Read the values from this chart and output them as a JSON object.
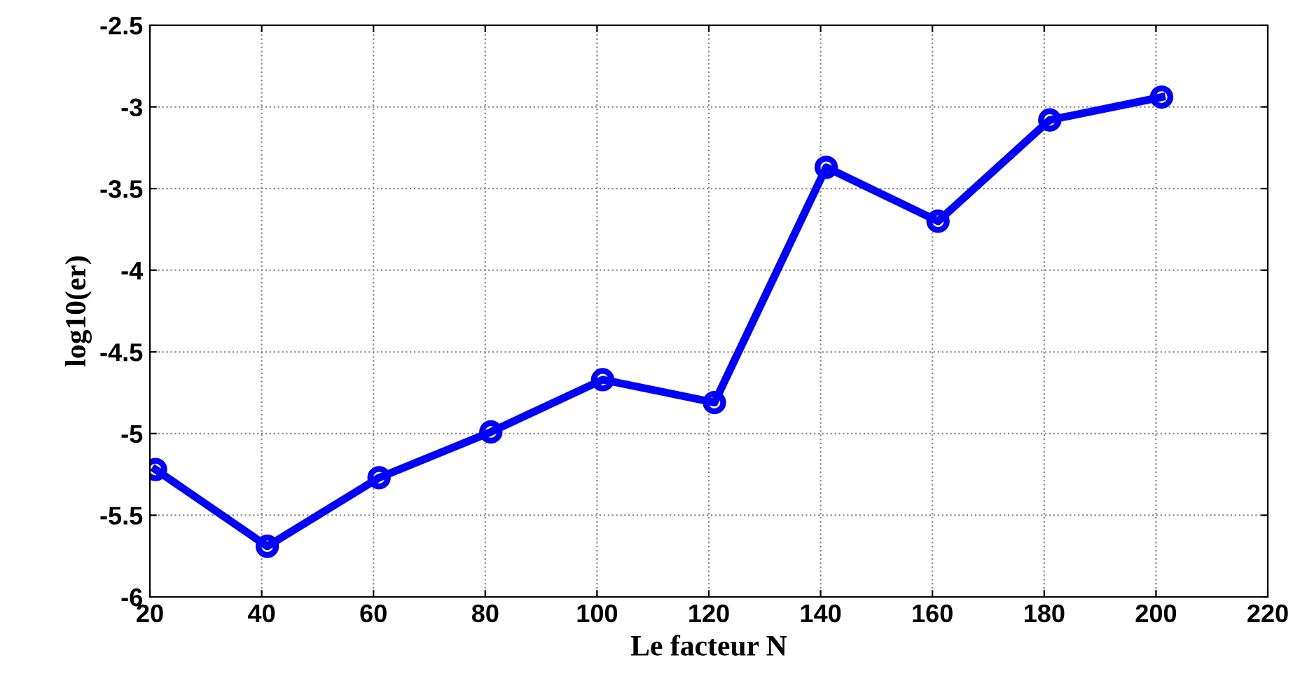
{
  "chart_data": {
    "type": "line",
    "xlabel": "Le facteur N",
    "ylabel": "log10(er)",
    "x": [
      21,
      41,
      61,
      81,
      101,
      121,
      141,
      161,
      181,
      201
    ],
    "series": [
      {
        "color": "#0000ff",
        "values": [
          -5.22,
          -5.69,
          -5.27,
          -4.99,
          -4.67,
          -4.81,
          -3.37,
          -3.7,
          -3.08,
          -2.94
        ]
      }
    ],
    "xlim": [
      20,
      220
    ],
    "xticks": [
      20,
      40,
      60,
      80,
      100,
      120,
      140,
      160,
      180,
      200,
      220
    ],
    "ylim": [
      -6,
      -2.5
    ],
    "yticks": [
      -6,
      -5.5,
      -5,
      -4.5,
      -4,
      -3.5,
      -3,
      -2.5
    ],
    "grid": true,
    "marker": "circle",
    "line_style": "solid"
  }
}
